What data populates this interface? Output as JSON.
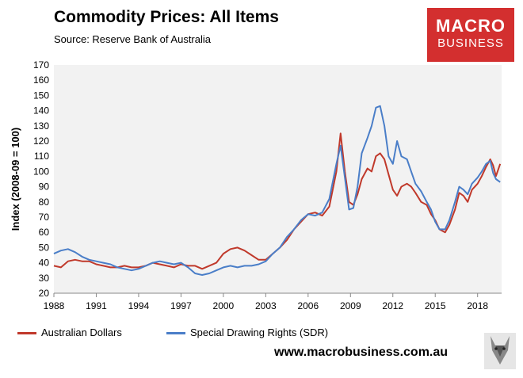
{
  "header": {
    "title": "Commodity Prices: All Items",
    "subtitle": "Source: Reserve Bank of Australia"
  },
  "logo": {
    "line1": "MACRO",
    "line2": "BUSINESS"
  },
  "footer": {
    "website": "www.macrobusiness.com.au",
    "mascot_icon": "wolf-icon"
  },
  "colors": {
    "aud": "#c0392b",
    "sdr": "#4a7ec8",
    "plot_bg": "#f2f2f2",
    "logo_bg": "#d32f2f"
  },
  "chart_data": {
    "type": "line",
    "title": "Commodity Prices: All Items",
    "ylabel": "Index (2008-09 = 100)",
    "xlabel": "",
    "xlim": [
      1988,
      2019.7
    ],
    "ylim": [
      20,
      170
    ],
    "yticks": [
      20,
      30,
      40,
      50,
      60,
      70,
      80,
      90,
      100,
      110,
      120,
      130,
      140,
      150,
      160,
      170
    ],
    "xticks": [
      1988,
      1991,
      1994,
      1997,
      2000,
      2003,
      2006,
      2009,
      2012,
      2015,
      2018
    ],
    "legend_position": "bottom",
    "series": [
      {
        "name": "Australian Dollars",
        "points": [
          [
            1988,
            38
          ],
          [
            1988.5,
            37
          ],
          [
            1989,
            41
          ],
          [
            1989.5,
            42
          ],
          [
            1990,
            41
          ],
          [
            1990.5,
            41
          ],
          [
            1991,
            39
          ],
          [
            1991.5,
            38
          ],
          [
            1992,
            37
          ],
          [
            1992.5,
            37
          ],
          [
            1993,
            38
          ],
          [
            1993.5,
            37
          ],
          [
            1994,
            37
          ],
          [
            1994.5,
            38
          ],
          [
            1995,
            40
          ],
          [
            1995.5,
            39
          ],
          [
            1996,
            38
          ],
          [
            1996.5,
            37
          ],
          [
            1997,
            39
          ],
          [
            1997.5,
            38
          ],
          [
            1998,
            38
          ],
          [
            1998.5,
            36
          ],
          [
            1999,
            38
          ],
          [
            1999.5,
            40
          ],
          [
            2000,
            46
          ],
          [
            2000.5,
            49
          ],
          [
            2001,
            50
          ],
          [
            2001.5,
            48
          ],
          [
            2002,
            45
          ],
          [
            2002.5,
            42
          ],
          [
            2003,
            42
          ],
          [
            2003.5,
            46
          ],
          [
            2004,
            50
          ],
          [
            2004.5,
            55
          ],
          [
            2005,
            62
          ],
          [
            2005.5,
            67
          ],
          [
            2006,
            72
          ],
          [
            2006.5,
            73
          ],
          [
            2007,
            71
          ],
          [
            2007.5,
            77
          ],
          [
            2008,
            100
          ],
          [
            2008.3,
            125
          ],
          [
            2008.6,
            100
          ],
          [
            2008.9,
            80
          ],
          [
            2009.2,
            78
          ],
          [
            2009.5,
            85
          ],
          [
            2009.8,
            95
          ],
          [
            2010.2,
            102
          ],
          [
            2010.5,
            100
          ],
          [
            2010.8,
            110
          ],
          [
            2011.1,
            112
          ],
          [
            2011.4,
            108
          ],
          [
            2011.7,
            98
          ],
          [
            2012,
            88
          ],
          [
            2012.3,
            84
          ],
          [
            2012.6,
            90
          ],
          [
            2013,
            92
          ],
          [
            2013.3,
            90
          ],
          [
            2013.6,
            86
          ],
          [
            2014,
            80
          ],
          [
            2014.4,
            78
          ],
          [
            2014.7,
            72
          ],
          [
            2015,
            68
          ],
          [
            2015.3,
            62
          ],
          [
            2015.7,
            60
          ],
          [
            2016,
            65
          ],
          [
            2016.4,
            75
          ],
          [
            2016.7,
            86
          ],
          [
            2017,
            84
          ],
          [
            2017.3,
            80
          ],
          [
            2017.6,
            88
          ],
          [
            2018,
            92
          ],
          [
            2018.3,
            97
          ],
          [
            2018.6,
            103
          ],
          [
            2018.9,
            108
          ],
          [
            2019.1,
            104
          ],
          [
            2019.3,
            97
          ],
          [
            2019.6,
            105
          ]
        ]
      },
      {
        "name": "Special Drawing Rights (SDR)",
        "points": [
          [
            1988,
            46
          ],
          [
            1988.5,
            48
          ],
          [
            1989,
            49
          ],
          [
            1989.5,
            47
          ],
          [
            1990,
            44
          ],
          [
            1990.5,
            42
          ],
          [
            1991,
            41
          ],
          [
            1991.5,
            40
          ],
          [
            1992,
            39
          ],
          [
            1992.5,
            37
          ],
          [
            1993,
            36
          ],
          [
            1993.5,
            35
          ],
          [
            1994,
            36
          ],
          [
            1994.5,
            38
          ],
          [
            1995,
            40
          ],
          [
            1995.5,
            41
          ],
          [
            1996,
            40
          ],
          [
            1996.5,
            39
          ],
          [
            1997,
            40
          ],
          [
            1997.5,
            37
          ],
          [
            1998,
            33
          ],
          [
            1998.5,
            32
          ],
          [
            1999,
            33
          ],
          [
            1999.5,
            35
          ],
          [
            2000,
            37
          ],
          [
            2000.5,
            38
          ],
          [
            2001,
            37
          ],
          [
            2001.5,
            38
          ],
          [
            2002,
            38
          ],
          [
            2002.5,
            39
          ],
          [
            2003,
            41
          ],
          [
            2003.5,
            46
          ],
          [
            2004,
            50
          ],
          [
            2004.5,
            57
          ],
          [
            2005,
            62
          ],
          [
            2005.5,
            68
          ],
          [
            2006,
            72
          ],
          [
            2006.5,
            71
          ],
          [
            2007,
            73
          ],
          [
            2007.5,
            82
          ],
          [
            2008,
            105
          ],
          [
            2008.3,
            117
          ],
          [
            2008.6,
            96
          ],
          [
            2008.9,
            75
          ],
          [
            2009.2,
            76
          ],
          [
            2009.5,
            90
          ],
          [
            2009.8,
            112
          ],
          [
            2010.2,
            122
          ],
          [
            2010.5,
            130
          ],
          [
            2010.8,
            142
          ],
          [
            2011.1,
            143
          ],
          [
            2011.4,
            130
          ],
          [
            2011.7,
            110
          ],
          [
            2012,
            105
          ],
          [
            2012.3,
            120
          ],
          [
            2012.6,
            110
          ],
          [
            2013,
            108
          ],
          [
            2013.3,
            100
          ],
          [
            2013.6,
            92
          ],
          [
            2014,
            87
          ],
          [
            2014.4,
            80
          ],
          [
            2014.7,
            75
          ],
          [
            2015,
            67
          ],
          [
            2015.3,
            62
          ],
          [
            2015.7,
            62
          ],
          [
            2016,
            68
          ],
          [
            2016.4,
            80
          ],
          [
            2016.7,
            90
          ],
          [
            2017,
            88
          ],
          [
            2017.3,
            85
          ],
          [
            2017.6,
            92
          ],
          [
            2018,
            96
          ],
          [
            2018.3,
            100
          ],
          [
            2018.6,
            105
          ],
          [
            2018.9,
            107
          ],
          [
            2019.1,
            99
          ],
          [
            2019.3,
            95
          ],
          [
            2019.6,
            93
          ]
        ]
      }
    ]
  }
}
